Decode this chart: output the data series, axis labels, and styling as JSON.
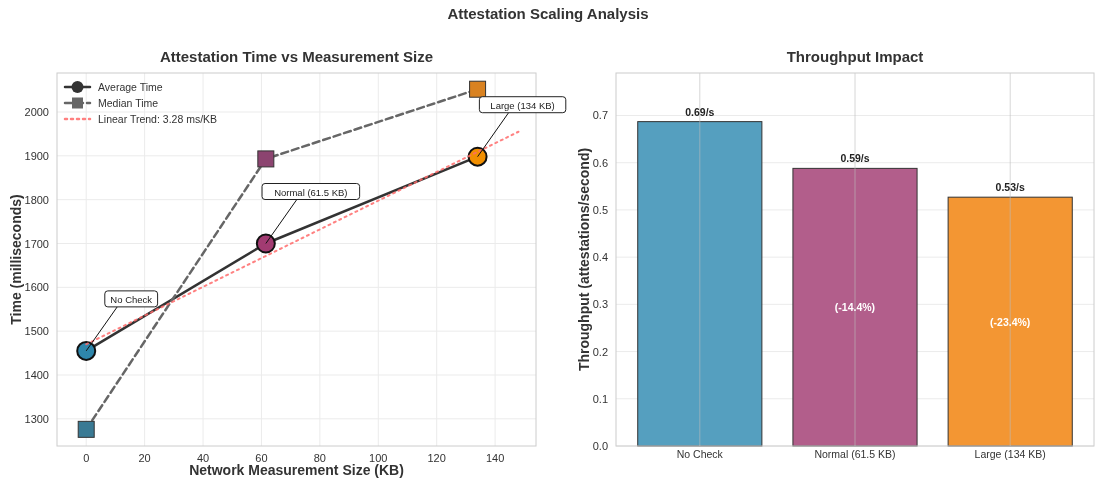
{
  "chart_data": [
    {
      "type": "other",
      "title": "Attestation Scaling Analysis"
    },
    {
      "type": "line",
      "title": "Attestation Time vs Measurement Size",
      "xlabel": "Network Measurement Size (KB)",
      "ylabel": "Time (milliseconds)",
      "x": [
        0,
        61.5,
        134
      ],
      "xlim": [
        -10,
        154
      ],
      "ylim": [
        1238,
        2089
      ],
      "xticks": [
        0,
        20,
        40,
        60,
        80,
        100,
        120,
        140
      ],
      "yticks": [
        1300,
        1400,
        1500,
        1600,
        1700,
        1800,
        1900,
        2000
      ],
      "grid": true,
      "legend": "top left",
      "series": [
        {
          "name": "Average Time",
          "type": "line",
          "color": "#333333",
          "colors": [
            "#2e86ab",
            "#a23b72",
            "#f18f01"
          ],
          "values": [
            1455,
            1700,
            1898
          ],
          "marker": "circle",
          "line_style": "solid"
        },
        {
          "name": "Median Time",
          "type": "line",
          "color": "#666666",
          "colors": [
            "#3a7a94",
            "#8c4470",
            "#d98221"
          ],
          "values": [
            1276,
            1893,
            2052
          ],
          "marker": "square",
          "line_style": "dashed"
        },
        {
          "name": "Linear Trend: 3.28 ms/KB",
          "type": "line",
          "color": "#ff6b6b",
          "x": [
            0,
            148
          ],
          "values": [
            1470,
            1955
          ],
          "marker": "none",
          "line_style": "dotted"
        }
      ],
      "annotations": [
        {
          "text": "No Check",
          "x": 0,
          "y": 1455
        },
        {
          "text": "Normal (61.5 KB)",
          "x": 61.5,
          "y": 1700
        },
        {
          "text": "Large (134 KB)",
          "x": 134,
          "y": 1898
        }
      ]
    },
    {
      "type": "bar",
      "title": "Throughput Impact",
      "ylabel": "Throughput (attestations/second)",
      "categories": [
        "No Check",
        "Normal (61.5 KB)",
        "Large (134 KB)"
      ],
      "values": [
        0.687,
        0.588,
        0.527
      ],
      "colors": [
        "#559fbf",
        "#b25e8b",
        "#f39633"
      ],
      "value_labels": [
        "0.69/s",
        "0.59/s",
        "0.53/s"
      ],
      "ylim": [
        0,
        0.79
      ],
      "yticks": [
        {
          "value": 0,
          "label": "0.0"
        },
        0.1,
        0.2,
        0.3,
        0.4,
        0.5,
        0.6,
        0.7
      ],
      "grid": true,
      "annotations": [
        "(-14.4%)",
        "(-23.4%)"
      ]
    }
  ]
}
